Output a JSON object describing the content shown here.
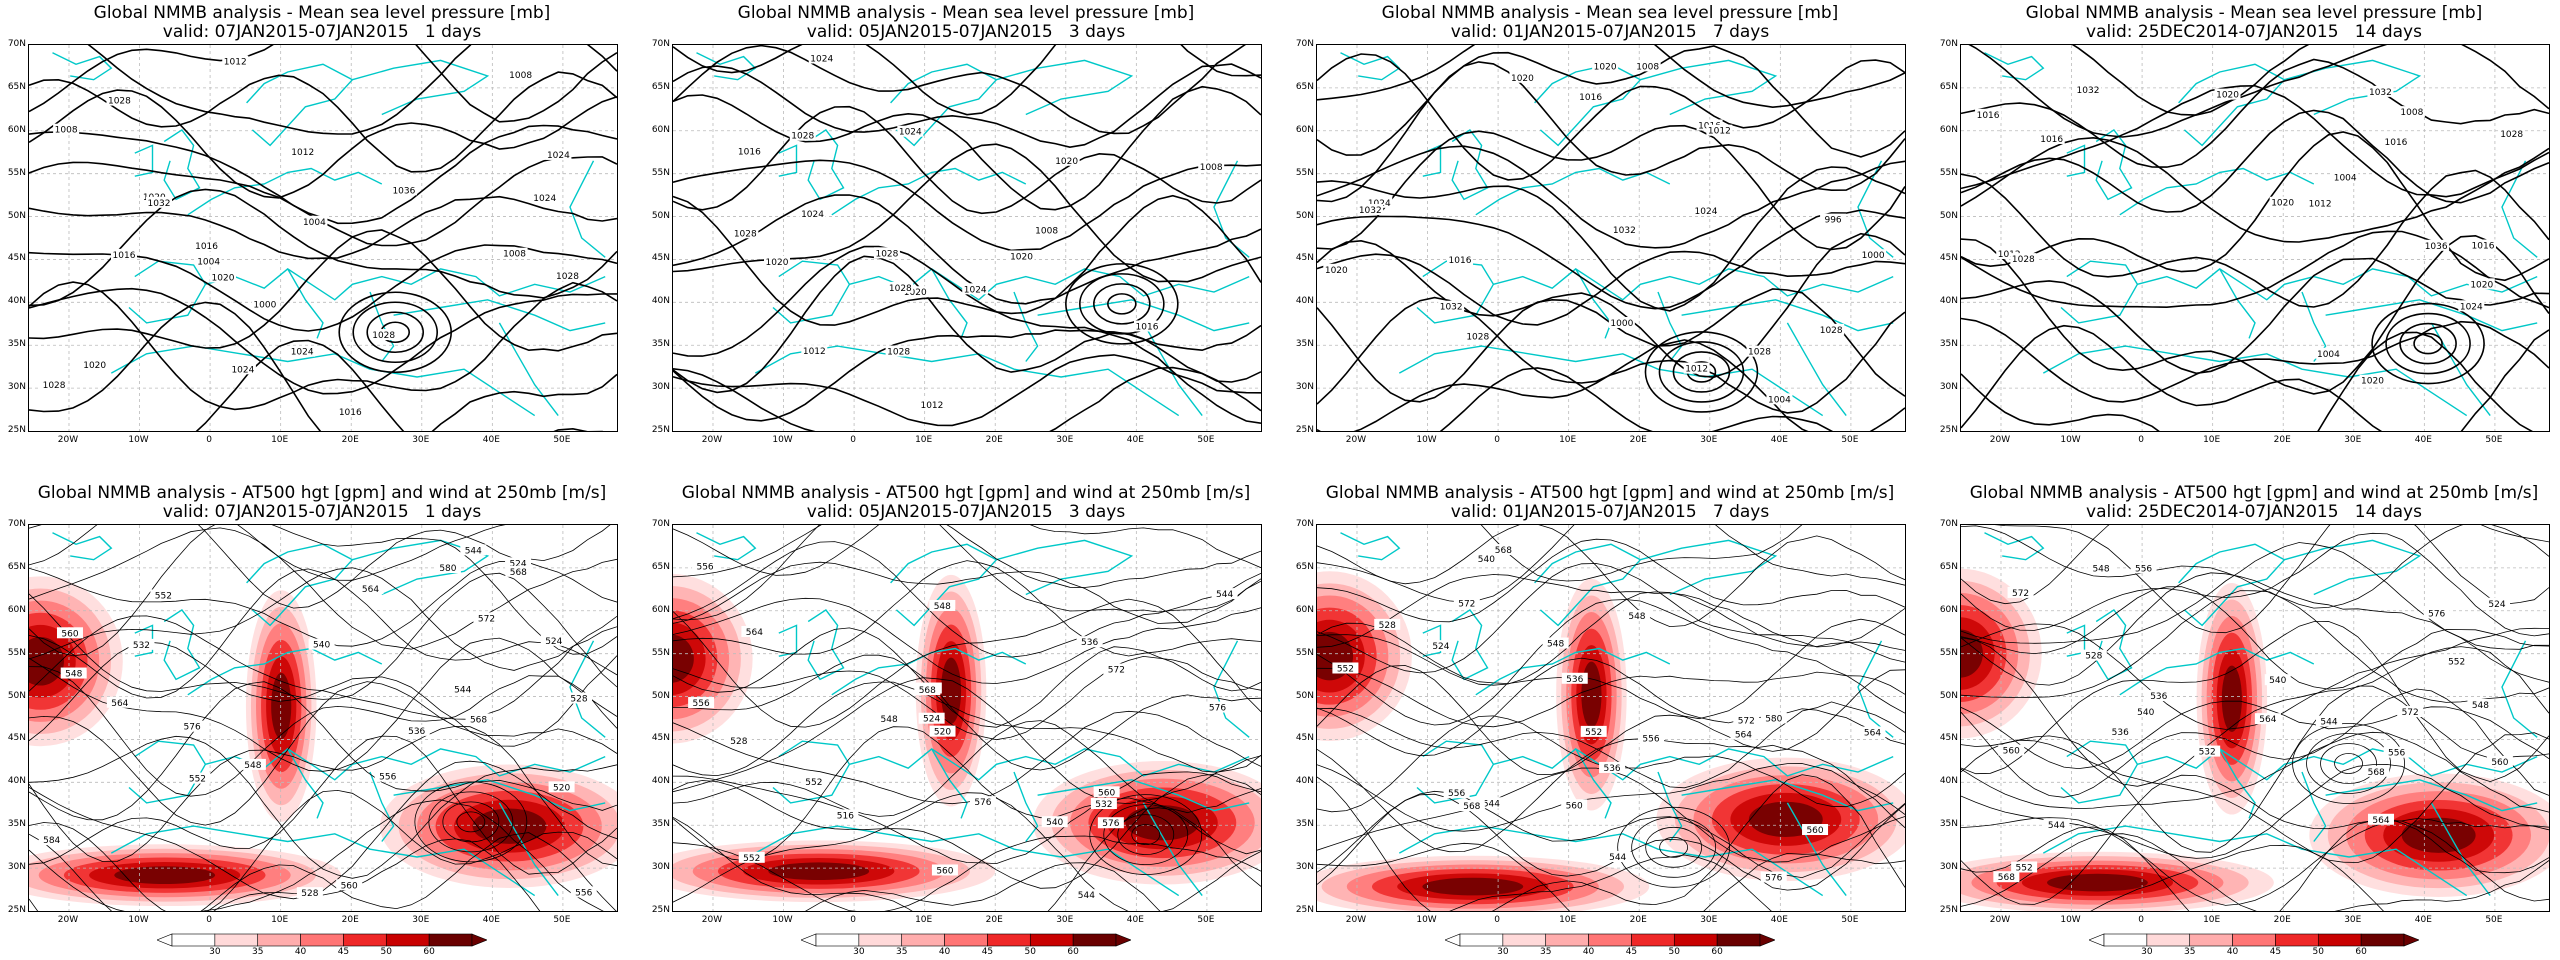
{
  "colors": {
    "coast": "#00c8c8",
    "contour": "#000000",
    "grid": "#bbbbbb",
    "wind": [
      "#ffffff",
      "#ffd9d9",
      "#ffadad",
      "#ff7575",
      "#ef2828",
      "#c80000",
      "#6a0000"
    ]
  },
  "lat_labels": [
    "70N",
    "65N",
    "60N",
    "55N",
    "50N",
    "45N",
    "40N",
    "35N",
    "30N",
    "25N"
  ],
  "lon_labels": [
    "20W",
    "10W",
    "0",
    "10E",
    "20E",
    "30E",
    "40E",
    "50E"
  ],
  "colorbar_labels": [
    "30",
    "35",
    "40",
    "45",
    "50",
    "60"
  ],
  "mslp_panels": [
    {
      "title": "Global NMMB analysis - Mean sea level pressure [mb]",
      "valid": "valid: 07JAN2015-07JAN2015   1 days",
      "labels": [
        "1000",
        "1004",
        "1008",
        "1012",
        "1016",
        "1016",
        "1020",
        "1020",
        "1024",
        "1024",
        "1024",
        "1028",
        "1028",
        "1028",
        "1032",
        "1036",
        "1008",
        "1004",
        "1012",
        "1016",
        "1020",
        "1024",
        "1028",
        "1008"
      ]
    },
    {
      "title": "Global NMMB analysis - Mean sea level pressure [mb]",
      "valid": "valid: 05JAN2015-07JAN2015   3 days",
      "labels": [
        "1020",
        "1020",
        "1016",
        "1024",
        "1024",
        "1028",
        "1028",
        "1028",
        "1028",
        "1024",
        "1020",
        "1016",
        "1012",
        "1008",
        "1008",
        "1012",
        "1020",
        "1024",
        "1028"
      ]
    },
    {
      "title": "Global NMMB analysis - Mean sea level pressure [mb]",
      "valid": "valid: 01JAN2015-07JAN2015   7 days",
      "labels": [
        "996",
        "1000",
        "1004",
        "1008",
        "1012",
        "1016",
        "1020",
        "1024",
        "1028",
        "1032",
        "1028",
        "1024",
        "1020",
        "1016",
        "1012",
        "1016",
        "1020",
        "1000",
        "1032",
        "1032",
        "1028"
      ]
    },
    {
      "title": "Global NMMB analysis - Mean sea level pressure [mb]",
      "valid": "valid: 25DEC2014-07JAN2015   14 days",
      "labels": [
        "1004",
        "1004",
        "1008",
        "1012",
        "1016",
        "1020",
        "1024",
        "1028",
        "1032",
        "1036",
        "1016",
        "1012",
        "1016",
        "1020",
        "1020",
        "1016",
        "1028",
        "1032",
        "1020"
      ]
    }
  ],
  "z500_panels": [
    {
      "title": "Global NMMB analysis - AT500 hgt [gpm] and wind at 250mb [m/s]",
      "valid": "valid: 07JAN2015-07JAN2015   1 days",
      "labels": [
        "536",
        "524",
        "528",
        "532",
        "544",
        "548",
        "552",
        "556",
        "560",
        "564",
        "568",
        "572",
        "576",
        "580",
        "584",
        "520",
        "524",
        "528",
        "540",
        "544",
        "548",
        "552",
        "556",
        "560",
        "564",
        "568"
      ]
    },
    {
      "title": "Global NMMB analysis - AT500 hgt [gpm] and wind at 250mb [m/s]",
      "valid": "valid: 05JAN2015-07JAN2015   3 days",
      "labels": [
        "540",
        "544",
        "548",
        "552",
        "556",
        "560",
        "564",
        "516",
        "520",
        "524",
        "528",
        "572",
        "576",
        "576",
        "532",
        "536",
        "540",
        "544",
        "548",
        "552",
        "556",
        "560",
        "568",
        "576"
      ]
    },
    {
      "title": "Global NMMB analysis - AT500 hgt [gpm] and wind at 250mb [m/s]",
      "valid": "valid: 01JAN2015-07JAN2015   7 days",
      "labels": [
        "524",
        "528",
        "536",
        "540",
        "544",
        "548",
        "552",
        "556",
        "560",
        "564",
        "568",
        "572",
        "576",
        "580",
        "536",
        "544",
        "548",
        "552",
        "556",
        "560",
        "564",
        "568",
        "572"
      ]
    },
    {
      "title": "Global NMMB analysis - AT500 hgt [gpm] and wind at 250mb [m/s]",
      "valid": "valid: 25DEC2014-07JAN2015   14 days",
      "labels": [
        "524",
        "528",
        "532",
        "536",
        "540",
        "544",
        "548",
        "552",
        "556",
        "560",
        "564",
        "568",
        "572",
        "576",
        "536",
        "540",
        "544",
        "548",
        "552",
        "556",
        "560",
        "564",
        "568",
        "572"
      ]
    }
  ]
}
